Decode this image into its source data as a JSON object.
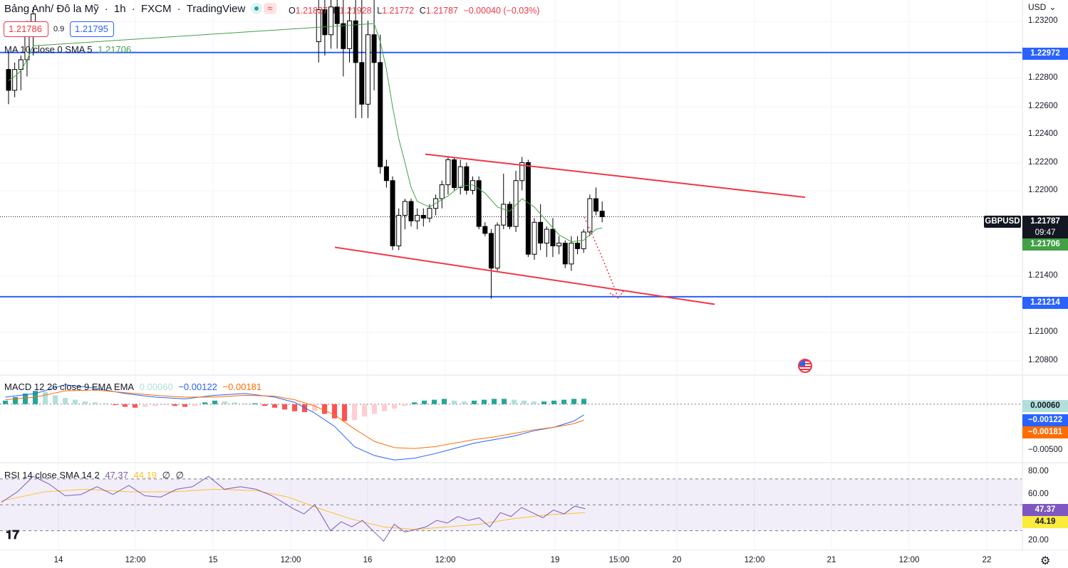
{
  "header": {
    "title_parts": [
      "Bảng Anh/ Đô la Mỹ",
      "1h",
      "FXCM",
      "TradingView"
    ],
    "separator": " · ",
    "ohlc": {
      "o_label": "O",
      "o": "1.21827",
      "h_label": "H",
      "h": "1.21928",
      "l_label": "L",
      "l": "1.21772",
      "c_label": "C",
      "c": "1.21787",
      "change": "−0.00040 (−0.03%)"
    },
    "sell_price": "1.21786",
    "spread": "0.9",
    "buy_price": "1.21795",
    "currency": "USD"
  },
  "indicators": {
    "ma": {
      "label": "MA 10 close 0 SMA 5",
      "value": "1.21706"
    },
    "macd": {
      "label": "MACD 12 26 close 9 EMA EMA",
      "hist": "0.00060",
      "macd": "−0.00122",
      "signal": "−0.00181"
    },
    "rsi": {
      "label": "RSI 14 close SMA 14 2",
      "rsi": "47.37",
      "ma": "44.19",
      "extra1": "∅",
      "extra2": "∅"
    }
  },
  "price_labels": {
    "symbol": "GBPUSD",
    "last": "1.21787",
    "countdown": "09:47",
    "ma": "1.21706",
    "upper_line": "1.22972",
    "lower_line": "1.21214",
    "macd_hist": "0.00060",
    "macd": "−0.00122",
    "macd_signal": "−0.00181",
    "rsi": "47.37",
    "rsi_ma": "44.19"
  },
  "colors": {
    "up": "#26a69a",
    "down": "#ef5350",
    "candle_up": "#ffffff",
    "candle_down": "#000000",
    "horizontal": "#2962ff",
    "channel": "#f23645",
    "ma": "#43a047",
    "macd": "#2962ff",
    "signal": "#ff6d00",
    "rsi": "#7e57c2",
    "rsi_ma": "#fbc02d"
  },
  "axes": {
    "price_ticks": [
      "1.23200",
      "1.22800",
      "1.22600",
      "1.22400",
      "1.22200",
      "1.22000",
      "1.21400",
      "1.21000",
      "1.20800"
    ],
    "macd_ticks": [
      "−0.00500"
    ],
    "rsi_ticks": [
      "80.00",
      "60.00",
      "20.00"
    ],
    "time_ticks": [
      "14",
      "12:00",
      "15",
      "12:00",
      "16",
      "12:00",
      "19",
      "15:00",
      "20",
      "12:00",
      "21",
      "12:00",
      "22"
    ]
  },
  "icons": {
    "logo": "tradingview-logo-icon",
    "settings": "gear-icon",
    "flag": "us-flag-icon"
  },
  "chart_data": [
    {
      "type": "candlestick",
      "title": "GBPUSD 1h",
      "ylim": [
        1.2065,
        1.2335
      ],
      "horizontal_lines": [
        1.22972,
        1.21214
      ],
      "channel_upper": [
        [
          79,
          1.2224
        ],
        [
          144,
          1.2193
        ]
      ],
      "channel_lower": [
        [
          38,
          1.2157
        ],
        [
          123,
          1.2116
        ]
      ],
      "projection": [
        [
          103,
          1.21787
        ],
        [
          110,
          1.2123
        ]
      ],
      "candles": [
        [
          1.2285,
          1.2298,
          1.226,
          1.227
        ],
        [
          1.227,
          1.229,
          1.2265,
          1.2285
        ],
        [
          1.2285,
          1.2295,
          1.227,
          1.2292
        ],
        [
          1.2292,
          1.232,
          1.228,
          1.231
        ],
        [
          1.231,
          1.233,
          1.2295,
          1.2325
        ],
        [
          1.2305,
          1.2335,
          1.229,
          1.2328
        ],
        [
          1.2328,
          1.2335,
          1.2295,
          1.231
        ],
        [
          1.231,
          1.2335,
          1.23,
          1.233
        ],
        [
          1.233,
          1.2335,
          1.23,
          1.2318
        ],
        [
          1.2318,
          1.2335,
          1.228,
          1.23
        ],
        [
          1.23,
          1.233,
          1.229,
          1.232
        ],
        [
          1.232,
          1.2335,
          1.225,
          1.229
        ],
        [
          1.229,
          1.2335,
          1.225,
          1.226
        ],
        [
          1.226,
          1.232,
          1.225,
          1.231
        ],
        [
          1.231,
          1.2335,
          1.227,
          1.229
        ],
        [
          1.229,
          1.231,
          1.221,
          1.2215
        ],
        [
          1.2215,
          1.222,
          1.22,
          1.2205
        ],
        [
          1.2205,
          1.2208,
          1.2155,
          1.2158
        ],
        [
          1.2158,
          1.2185,
          1.2155,
          1.218
        ],
        [
          1.218,
          1.2192,
          1.217,
          1.219
        ],
        [
          1.219,
          1.2192,
          1.2172,
          1.2176
        ],
        [
          1.2176,
          1.2185,
          1.217,
          1.218
        ],
        [
          1.218,
          1.2185,
          1.2172,
          1.2178
        ],
        [
          1.2178,
          1.2188,
          1.2175,
          1.2185
        ],
        [
          1.2185,
          1.2195,
          1.218,
          1.2192
        ],
        [
          1.2192,
          1.2205,
          1.2185,
          1.2202
        ],
        [
          1.2202,
          1.2222,
          1.2195,
          1.222
        ],
        [
          1.222,
          1.2222,
          1.2198,
          1.22
        ],
        [
          1.22,
          1.222,
          1.2195,
          1.2215
        ],
        [
          1.2215,
          1.2218,
          1.2195,
          1.2198
        ],
        [
          1.2198,
          1.2208,
          1.2195,
          1.2205
        ],
        [
          1.2205,
          1.2208,
          1.217,
          1.2172
        ],
        [
          1.2172,
          1.2175,
          1.2165,
          1.2167
        ],
        [
          1.2167,
          1.217,
          1.212,
          1.2142
        ],
        [
          1.2142,
          1.2175,
          1.214,
          1.2173
        ],
        [
          1.2173,
          1.221,
          1.217,
          1.2188
        ],
        [
          1.2188,
          1.219,
          1.217,
          1.2172
        ],
        [
          1.2172,
          1.2212,
          1.2168,
          1.2205
        ],
        [
          1.2205,
          1.2222,
          1.2198,
          1.2218
        ],
        [
          1.2218,
          1.222,
          1.215,
          1.2152
        ],
        [
          1.2152,
          1.2178,
          1.2148,
          1.2175
        ],
        [
          1.2175,
          1.2188,
          1.2155,
          1.216
        ],
        [
          1.216,
          1.2172,
          1.215,
          1.217
        ],
        [
          1.217,
          1.2178,
          1.215,
          1.2158
        ],
        [
          1.2158,
          1.2165,
          1.2152,
          1.216
        ],
        [
          1.216,
          1.2162,
          1.2142,
          1.2145
        ],
        [
          1.2145,
          1.2165,
          1.214,
          1.216
        ],
        [
          1.216,
          1.2165,
          1.2152,
          1.2156
        ],
        [
          1.2156,
          1.217,
          1.2153,
          1.2168
        ],
        [
          1.2168,
          1.2195,
          1.2165,
          1.2192
        ],
        [
          1.2192,
          1.22,
          1.218,
          1.2183
        ],
        [
          1.2183,
          1.219,
          1.2175,
          1.2179
        ]
      ],
      "ma_line": [
        [
          0,
          1.2277
        ],
        [
          1,
          1.228
        ],
        [
          2,
          1.2284
        ],
        [
          3,
          1.2292
        ],
        [
          4,
          1.2302
        ],
        [
          14,
          1.2318
        ],
        [
          15,
          1.2305
        ],
        [
          16,
          1.2285
        ],
        [
          17,
          1.2258
        ],
        [
          18,
          1.2235
        ],
        [
          19,
          1.2218
        ],
        [
          20,
          1.22
        ],
        [
          21,
          1.219
        ],
        [
          23,
          1.2186
        ],
        [
          26,
          1.2194
        ],
        [
          28,
          1.2201
        ],
        [
          30,
          1.2202
        ],
        [
          32,
          1.2196
        ],
        [
          34,
          1.2186
        ],
        [
          36,
          1.2183
        ],
        [
          38,
          1.2192
        ],
        [
          40,
          1.2186
        ],
        [
          42,
          1.2176
        ],
        [
          44,
          1.2166
        ],
        [
          46,
          1.2161
        ],
        [
          48,
          1.2162
        ],
        [
          50,
          1.217
        ],
        [
          51,
          1.2171
        ]
      ]
    },
    {
      "type": "bar",
      "title": "MACD 12 26 close 9 EMA EMA",
      "ylim": [
        -0.0066,
        0.0032
      ],
      "histogram": [
        0.0004,
        0.0008,
        0.0012,
        0.0015,
        0.0014,
        0.001,
        0.0007,
        0.0005,
        0.0003,
        0.0002,
        0.0001,
        -0.0001,
        -0.0003,
        -0.0004,
        -0.0003,
        -0.0002,
        -0.0001,
        -0.0002,
        -0.0003,
        -0.0002,
        0.0002,
        0.0004,
        0.0003,
        0.0002,
        0.0001,
        0.0001,
        -0.0002,
        -0.0004,
        -0.0006,
        -0.0008,
        -0.0009,
        -0.0008,
        -0.0011,
        -0.0016,
        -0.0019,
        -0.0018,
        -0.0014,
        -0.0011,
        -0.0008,
        -0.0005,
        -0.0002,
        0.0002,
        0.0004,
        0.0005,
        0.0006,
        0.0004,
        0.0003,
        0.0004,
        0.0005,
        0.0006,
        0.0006,
        0.0005,
        0.0004,
        0.0003,
        0.0003,
        0.0004,
        0.0005,
        0.0006,
        0.0006
      ],
      "macd_line": [
        [
          0,
          0.0008
        ],
        [
          3,
          0.0012
        ],
        [
          6,
          0.0022
        ],
        [
          9,
          0.0018
        ],
        [
          12,
          0.0012
        ],
        [
          15,
          0.0008
        ],
        [
          18,
          0.0006
        ],
        [
          21,
          0.001
        ],
        [
          24,
          0.0012
        ],
        [
          27,
          0.0008
        ],
        [
          29,
          0.0002
        ],
        [
          31,
          -0.001
        ],
        [
          33,
          -0.0025
        ],
        [
          35,
          -0.0048
        ],
        [
          37,
          -0.0058
        ],
        [
          39,
          -0.0063
        ],
        [
          41,
          -0.0061
        ],
        [
          43,
          -0.0056
        ],
        [
          45,
          -0.005
        ],
        [
          47,
          -0.0044
        ],
        [
          49,
          -0.004
        ],
        [
          51,
          -0.0036
        ],
        [
          53,
          -0.003
        ],
        [
          55,
          -0.0026
        ],
        [
          57,
          -0.0019
        ],
        [
          58,
          -0.0012
        ]
      ],
      "signal_line": [
        [
          0,
          0.0005
        ],
        [
          3,
          0.0008
        ],
        [
          6,
          0.0015
        ],
        [
          9,
          0.0016
        ],
        [
          12,
          0.0013
        ],
        [
          15,
          0.001
        ],
        [
          18,
          0.0008
        ],
        [
          21,
          0.0008
        ],
        [
          24,
          0.001
        ],
        [
          27,
          0.0009
        ],
        [
          29,
          0.0005
        ],
        [
          31,
          -0.0002
        ],
        [
          33,
          -0.0012
        ],
        [
          35,
          -0.0028
        ],
        [
          37,
          -0.0042
        ],
        [
          39,
          -0.0049
        ],
        [
          41,
          -0.005
        ],
        [
          43,
          -0.0048
        ],
        [
          45,
          -0.0044
        ],
        [
          47,
          -0.004
        ],
        [
          49,
          -0.0037
        ],
        [
          51,
          -0.0033
        ],
        [
          53,
          -0.0029
        ],
        [
          55,
          -0.0026
        ],
        [
          57,
          -0.0022
        ],
        [
          58,
          -0.0018
        ]
      ]
    },
    {
      "type": "line",
      "title": "RSI 14 close SMA 14 2",
      "ylim": [
        15,
        82
      ],
      "bands": [
        70,
        50,
        30
      ],
      "rsi_line": [
        [
          0,
          52
        ],
        [
          3,
          60
        ],
        [
          6,
          72
        ],
        [
          9,
          66
        ],
        [
          12,
          57
        ],
        [
          15,
          58
        ],
        [
          18,
          64
        ],
        [
          21,
          58
        ],
        [
          24,
          65
        ],
        [
          27,
          57
        ],
        [
          30,
          56
        ],
        [
          33,
          62
        ],
        [
          36,
          64
        ],
        [
          39,
          72
        ],
        [
          42,
          62
        ],
        [
          45,
          64
        ],
        [
          48,
          62
        ],
        [
          51,
          57
        ],
        [
          53,
          52
        ],
        [
          55,
          47
        ],
        [
          57,
          43
        ],
        [
          59,
          50
        ],
        [
          60,
          44
        ],
        [
          62,
          30
        ],
        [
          64,
          37
        ],
        [
          66,
          33
        ],
        [
          68,
          38
        ],
        [
          70,
          30
        ],
        [
          72,
          22
        ],
        [
          74,
          35
        ],
        [
          76,
          29
        ],
        [
          78,
          31
        ],
        [
          80,
          33
        ],
        [
          82,
          38
        ],
        [
          84,
          36
        ],
        [
          86,
          41
        ],
        [
          88,
          38
        ],
        [
          90,
          40
        ],
        [
          92,
          33
        ],
        [
          94,
          44
        ],
        [
          96,
          41
        ],
        [
          98,
          48
        ],
        [
          100,
          44
        ],
        [
          102,
          40
        ],
        [
          104,
          46
        ],
        [
          106,
          43
        ],
        [
          108,
          49
        ],
        [
          110,
          47
        ]
      ],
      "rsi_ma_line": [
        [
          0,
          53
        ],
        [
          8,
          60
        ],
        [
          16,
          62
        ],
        [
          24,
          60
        ],
        [
          32,
          60
        ],
        [
          40,
          62
        ],
        [
          48,
          61
        ],
        [
          54,
          56
        ],
        [
          60,
          47
        ],
        [
          66,
          39
        ],
        [
          72,
          33
        ],
        [
          78,
          31
        ],
        [
          84,
          33
        ],
        [
          90,
          35
        ],
        [
          96,
          39
        ],
        [
          102,
          42
        ],
        [
          106,
          43
        ],
        [
          110,
          44
        ]
      ]
    }
  ]
}
